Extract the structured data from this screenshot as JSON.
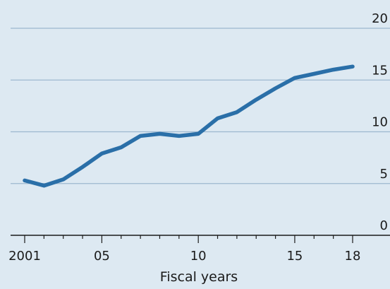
{
  "chart_data": {
    "type": "line",
    "title": "",
    "xlabel": "Fiscal years",
    "ylabel": "",
    "x": [
      2001,
      2002,
      2003,
      2004,
      2005,
      2006,
      2007,
      2008,
      2009,
      2010,
      2011,
      2012,
      2013,
      2014,
      2015,
      2016,
      2017,
      2018
    ],
    "series": [
      {
        "values": [
          5.3,
          4.8,
          5.4,
          6.6,
          7.9,
          8.5,
          9.6,
          9.8,
          9.6,
          9.8,
          11.3,
          11.9,
          13.1,
          14.2,
          15.2,
          15.6,
          16.0,
          16.3
        ],
        "color": "#2a6fa8"
      }
    ],
    "ylim": [
      0,
      20
    ],
    "y_ticks": [
      {
        "value": 0,
        "label": "0"
      },
      {
        "value": 5,
        "label": "5"
      },
      {
        "value": 10,
        "label": "10"
      },
      {
        "value": 15,
        "label": "15"
      },
      {
        "value": 20,
        "label": "20"
      }
    ],
    "x_ticks": [
      {
        "value": 2001,
        "label": "2001"
      },
      {
        "value": 2005,
        "label": "05"
      },
      {
        "value": 2010,
        "label": "10"
      },
      {
        "value": 2015,
        "label": "15"
      },
      {
        "value": 2018,
        "label": "18"
      }
    ],
    "grid": true,
    "gridline_color": "#9db8cf",
    "axis_color": "#1a1a1a"
  }
}
